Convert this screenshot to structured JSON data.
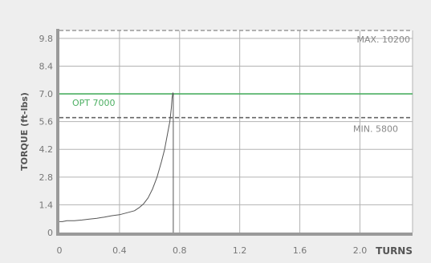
{
  "chart_data": {
    "type": "line",
    "title": "",
    "xlabel": "TURNS",
    "ylabel": "TORQUE (ft-lbs)",
    "xlim": [
      0,
      2.35
    ],
    "ylim": [
      0,
      10.2
    ],
    "x_ticks": [
      0,
      0.4,
      0.8,
      1.2,
      1.6,
      2.0
    ],
    "x_tick_labels": [
      "0",
      "0.4",
      "0.8",
      "1.2",
      "1.6",
      "2.0"
    ],
    "y_ticks": [
      0,
      1.4,
      2.8,
      4.2,
      5.6,
      7.0,
      8.4,
      9.8
    ],
    "y_tick_labels": [
      "0",
      "1.4",
      "2.8",
      "4.2",
      "5.6",
      "7.0",
      "8.4",
      "9.8"
    ],
    "grid": true,
    "reference_lines": [
      {
        "label": "MAX. 10200",
        "value": 10.2,
        "style": "dashed",
        "color": "#999999"
      },
      {
        "label": "OPT 7000",
        "value": 7.0,
        "style": "solid",
        "color": "#4caf62"
      },
      {
        "label": "MIN. 5800",
        "value": 5.8,
        "style": "dashed",
        "color": "#666666"
      }
    ],
    "series": [
      {
        "color": "#555555",
        "x": [
          0,
          0.02,
          0.05,
          0.1,
          0.15,
          0.2,
          0.25,
          0.3,
          0.35,
          0.4,
          0.45,
          0.5,
          0.53,
          0.56,
          0.59,
          0.62,
          0.65,
          0.68,
          0.7,
          0.72,
          0.735,
          0.745,
          0.75,
          0.755,
          0.758,
          0.758
        ],
        "y": [
          0.55,
          0.55,
          0.6,
          0.6,
          0.63,
          0.68,
          0.72,
          0.78,
          0.85,
          0.9,
          1.0,
          1.1,
          1.25,
          1.45,
          1.75,
          2.2,
          2.8,
          3.6,
          4.2,
          5.0,
          5.6,
          6.3,
          6.8,
          7.05,
          7.0,
          0.0
        ]
      }
    ],
    "colors": {
      "background": "#eeeeee",
      "plot_background": "#ffffff",
      "grid": "#b3b3b3",
      "axis": "#9a9a9a",
      "tick_label": "#777777",
      "axis_label": "#555555"
    }
  }
}
